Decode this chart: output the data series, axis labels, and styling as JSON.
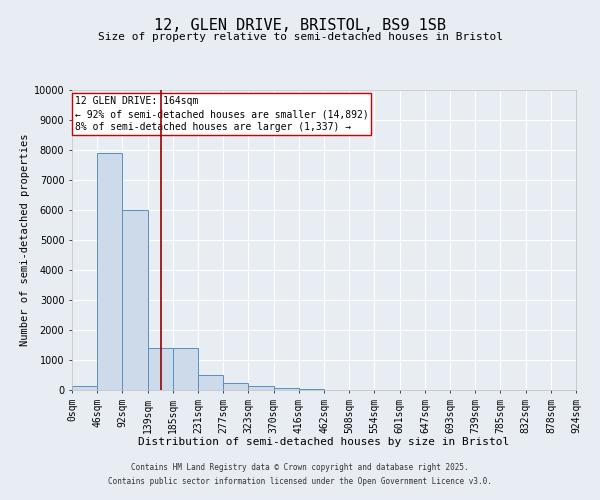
{
  "title": "12, GLEN DRIVE, BRISTOL, BS9 1SB",
  "subtitle": "Size of property relative to semi-detached houses in Bristol",
  "xlabel": "Distribution of semi-detached houses by size in Bristol",
  "ylabel": "Number of semi-detached properties",
  "annotation_text_line1": "12 GLEN DRIVE: 164sqm",
  "annotation_text_line2": "← 92% of semi-detached houses are smaller (14,892)",
  "annotation_text_line3": "8% of semi-detached houses are larger (1,337) →",
  "bin_edges": [
    0,
    46,
    92,
    139,
    185,
    231,
    277,
    323,
    370,
    416,
    462,
    508,
    554,
    601,
    647,
    693,
    739,
    785,
    832,
    878,
    924
  ],
  "bin_labels": [
    "0sqm",
    "46sqm",
    "92sqm",
    "139sqm",
    "185sqm",
    "231sqm",
    "277sqm",
    "323sqm",
    "370sqm",
    "416sqm",
    "462sqm",
    "508sqm",
    "554sqm",
    "601sqm",
    "647sqm",
    "693sqm",
    "739sqm",
    "785sqm",
    "832sqm",
    "878sqm",
    "924sqm"
  ],
  "bar_heights": [
    150,
    7900,
    6000,
    1400,
    1400,
    500,
    250,
    150,
    75,
    20,
    5,
    3,
    2,
    1,
    1,
    1,
    1,
    1,
    1,
    1
  ],
  "bar_facecolor": "#cddaea",
  "bar_edgecolor": "#5a8fc0",
  "vline_color": "#990000",
  "vline_x": 164,
  "ylim": [
    0,
    10000
  ],
  "xlim": [
    0,
    924
  ],
  "bg_color": "#e8edf4",
  "plot_bg_color": "#e8edf4",
  "grid_color": "#ffffff",
  "footer_line1": "Contains HM Land Registry data © Crown copyright and database right 2025.",
  "footer_line2": "Contains public sector information licensed under the Open Government Licence v3.0.",
  "annotation_box_edgecolor": "#cc0000",
  "annotation_box_facecolor": "#ffffff",
  "title_fontsize": 11,
  "subtitle_fontsize": 8,
  "tick_fontsize": 7,
  "ylabel_fontsize": 7.5,
  "xlabel_fontsize": 8,
  "footer_fontsize": 5.5,
  "annotation_fontsize": 7
}
